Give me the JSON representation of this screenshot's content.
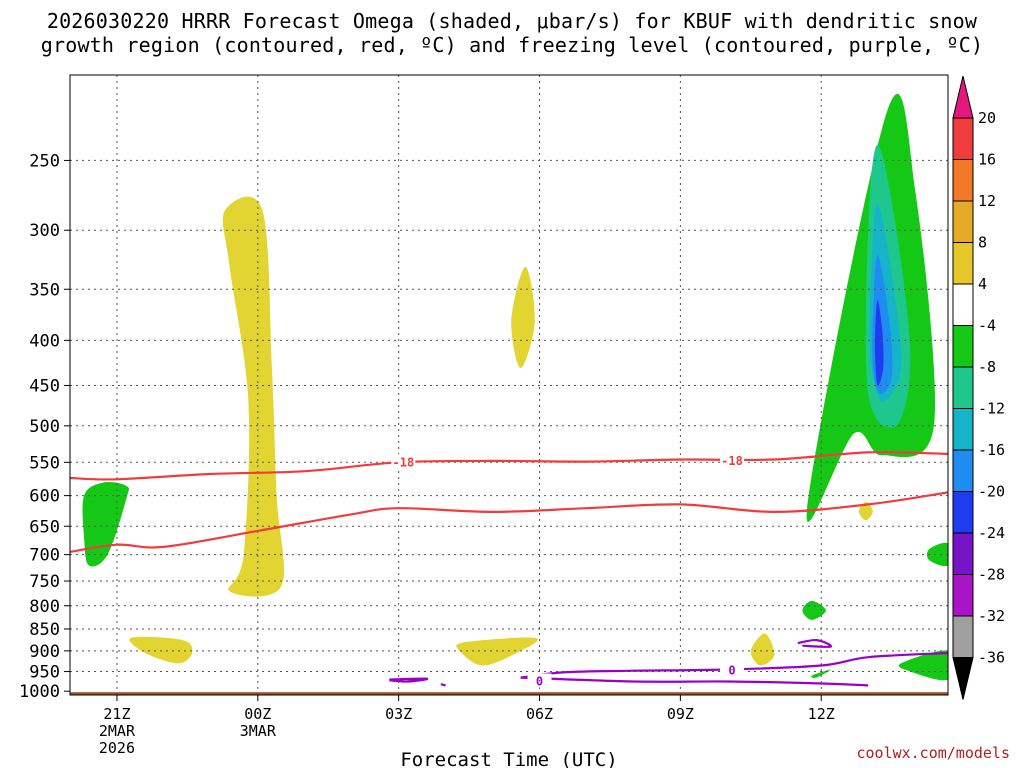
{
  "title_line1": "2026030220 HRRR Forecast Omega (shaded, μbar/s) for KBUF with dendritic snow",
  "title_line2": "growth region (contoured, red, ºC) and freezing level (contoured, purple, ºC)",
  "footer": "coolwx.com/models",
  "colors": {
    "yellow": "#e2d532",
    "green": "#15c815",
    "teal_green": "#1ec88c",
    "cyan_teal": "#16b4c8",
    "light_blue": "#1e8cf0",
    "blue": "#1e3cf0",
    "red_contour": "#f03c3c",
    "purple_contour": "#9b00c8",
    "ground": "#a0522d"
  },
  "chart_data": {
    "type": "heatmap",
    "title": "2026030220 HRRR Forecast Omega (shaded, μbar/s) for KBUF with dendritic snow growth region (contoured, red, ºC) and freezing level (contoured, purple, ºC)",
    "xlabel": "Forecast Time (UTC)",
    "ylabel": "",
    "x_ticks": [
      {
        "hour": 0,
        "label": "21Z",
        "sub1": "2MAR",
        "sub2": "2026"
      },
      {
        "hour": 3,
        "label": "00Z",
        "sub1": "3MAR",
        "sub2": ""
      },
      {
        "hour": 6,
        "label": "03Z",
        "sub1": "",
        "sub2": ""
      },
      {
        "hour": 9,
        "label": "06Z",
        "sub1": "",
        "sub2": ""
      },
      {
        "hour": 12,
        "label": "09Z",
        "sub1": "",
        "sub2": ""
      },
      {
        "hour": 15,
        "label": "12Z",
        "sub1": "",
        "sub2": ""
      }
    ],
    "xlim": [
      -1,
      17.7
    ],
    "y_ticks": [
      250,
      300,
      350,
      400,
      450,
      500,
      550,
      600,
      650,
      700,
      750,
      800,
      850,
      900,
      950,
      1000
    ],
    "ylim_hpa": [
      200,
      1010
    ],
    "y_scale": "log-pressure",
    "grid": true,
    "colorbar": {
      "label_values": [
        "20",
        "16",
        "12",
        "8",
        "4",
        "-4",
        "-8",
        "-12",
        "-16",
        "-20",
        "-24",
        "-28",
        "-32",
        "-36"
      ],
      "bands": [
        {
          "from": 20,
          "to": 24,
          "color": "#e6177c"
        },
        {
          "from": 16,
          "to": 20,
          "color": "#f03c3c"
        },
        {
          "from": 12,
          "to": 16,
          "color": "#f07828"
        },
        {
          "from": 8,
          "to": 12,
          "color": "#e6aa28"
        },
        {
          "from": 4,
          "to": 8,
          "color": "#e6c82d"
        },
        {
          "from": -4,
          "to": 4,
          "color": "#ffffff"
        },
        {
          "from": -8,
          "to": -4,
          "color": "#15c815"
        },
        {
          "from": -12,
          "to": -8,
          "color": "#1ec88c"
        },
        {
          "from": -16,
          "to": -12,
          "color": "#16b4c8"
        },
        {
          "from": -20,
          "to": -16,
          "color": "#1e8cf0"
        },
        {
          "from": -24,
          "to": -20,
          "color": "#1e3cf0"
        },
        {
          "from": -28,
          "to": -24,
          "color": "#7814c8"
        },
        {
          "from": -32,
          "to": -28,
          "color": "#aa14c8"
        },
        {
          "from": -36,
          "to": -32,
          "color": "#a0a0a0"
        }
      ]
    },
    "shaded_regions": [
      {
        "color": "yellow",
        "value": "4 to 8",
        "points": [
          [
            2.3,
            285
          ],
          [
            3.1,
            285
          ],
          [
            3.3,
            430
          ],
          [
            3.4,
            600
          ],
          [
            3.5,
            760
          ],
          [
            2.4,
            770
          ],
          [
            2.7,
            700
          ],
          [
            2.8,
            470
          ],
          [
            2.4,
            330
          ]
        ]
      },
      {
        "color": "yellow",
        "value": "4 to 8",
        "points": [
          [
            8.7,
            330
          ],
          [
            8.9,
            380
          ],
          [
            8.6,
            430
          ],
          [
            8.4,
            380
          ]
        ]
      },
      {
        "color": "yellow",
        "value": "4 to 8",
        "points": [
          [
            0.3,
            870
          ],
          [
            1.4,
            875
          ],
          [
            1.6,
            905
          ],
          [
            1.3,
            930
          ],
          [
            0.6,
            905
          ]
        ]
      },
      {
        "color": "yellow",
        "value": "4 to 8",
        "points": [
          [
            7.4,
            880
          ],
          [
            8.9,
            870
          ],
          [
            8.6,
            900
          ],
          [
            7.8,
            935
          ],
          [
            7.3,
            900
          ]
        ]
      },
      {
        "color": "yellow",
        "value": "4 to 8",
        "points": [
          [
            13.8,
            860
          ],
          [
            14.0,
            910
          ],
          [
            13.7,
            935
          ],
          [
            13.5,
            900
          ]
        ]
      },
      {
        "color": "yellow",
        "value": "4 to 8",
        "points": [
          [
            15.95,
            610
          ],
          [
            16.1,
            625
          ],
          [
            15.95,
            640
          ],
          [
            15.8,
            625
          ]
        ]
      },
      {
        "color": "green",
        "value": "-4 to -8",
        "points": [
          [
            14.7,
            620
          ],
          [
            16.4,
            220
          ],
          [
            17.0,
            270
          ],
          [
            17.4,
            500
          ],
          [
            16.3,
            540
          ],
          [
            15.7,
            510
          ]
        ]
      },
      {
        "color": "green",
        "value": "-4 to -8",
        "points": [
          [
            -0.7,
            600
          ],
          [
            -0.3,
            580
          ],
          [
            0.2,
            585
          ],
          [
            0.2,
            605
          ],
          [
            -0.2,
            700
          ],
          [
            -0.6,
            720
          ],
          [
            -0.7,
            670
          ]
        ]
      },
      {
        "color": "green",
        "value": "-4 to -8",
        "points": [
          [
            14.8,
            790
          ],
          [
            15.1,
            810
          ],
          [
            14.8,
            830
          ],
          [
            14.6,
            810
          ]
        ]
      },
      {
        "color": "green",
        "value": "-4 to -8",
        "points": [
          [
            14.8,
            960
          ],
          [
            15.2,
            945
          ],
          [
            14.9,
            965
          ]
        ]
      },
      {
        "color": "green",
        "value": "-4 to -8",
        "points": [
          [
            17.3,
            690
          ],
          [
            17.7,
            680
          ],
          [
            17.7,
            720
          ],
          [
            17.3,
            710
          ]
        ]
      },
      {
        "color": "green",
        "value": "-4 to -8",
        "points": [
          [
            16.7,
            930
          ],
          [
            17.7,
            900
          ],
          [
            17.7,
            970
          ],
          [
            16.9,
            950
          ]
        ]
      },
      {
        "color": "teal_green",
        "value": "-8 to -12",
        "points": [
          [
            16.0,
            300
          ],
          [
            16.2,
            240
          ],
          [
            16.6,
            300
          ],
          [
            16.9,
            420
          ],
          [
            16.6,
            500
          ],
          [
            16.0,
            460
          ]
        ]
      },
      {
        "color": "cyan_teal",
        "value": "-12 to -16",
        "points": [
          [
            16.05,
            350
          ],
          [
            16.2,
            280
          ],
          [
            16.55,
            350
          ],
          [
            16.7,
            430
          ],
          [
            16.3,
            470
          ],
          [
            16.05,
            420
          ]
        ]
      },
      {
        "color": "light_blue",
        "value": "-16 to -20",
        "points": [
          [
            16.1,
            380
          ],
          [
            16.2,
            320
          ],
          [
            16.45,
            380
          ],
          [
            16.5,
            440
          ],
          [
            16.25,
            460
          ],
          [
            16.1,
            430
          ]
        ]
      },
      {
        "color": "blue",
        "value": "-20 to -24",
        "points": [
          [
            16.15,
            390
          ],
          [
            16.2,
            360
          ],
          [
            16.3,
            390
          ],
          [
            16.32,
            430
          ],
          [
            16.2,
            450
          ],
          [
            16.15,
            420
          ]
        ]
      }
    ],
    "red_contours": [
      {
        "label": "-18",
        "points": [
          [
            -1,
            573
          ],
          [
            0,
            575
          ],
          [
            2,
            567
          ],
          [
            4,
            563
          ],
          [
            6,
            550
          ],
          [
            8,
            548
          ],
          [
            10,
            549
          ],
          [
            12,
            546
          ],
          [
            14,
            546
          ],
          [
            16,
            536
          ],
          [
            17.7,
            538
          ]
        ]
      },
      {
        "label": "",
        "points": [
          [
            -1,
            695
          ],
          [
            0,
            682
          ],
          [
            1,
            686
          ],
          [
            3,
            658
          ],
          [
            5,
            630
          ],
          [
            6,
            620
          ],
          [
            8,
            626
          ],
          [
            10,
            620
          ],
          [
            12,
            614
          ],
          [
            14,
            626
          ],
          [
            16,
            614
          ],
          [
            17.7,
            595
          ]
        ]
      }
    ],
    "purple_contours": [
      {
        "label": "0",
        "points": [
          [
            8.6,
            965
          ],
          [
            9.5,
            952
          ],
          [
            11,
            948
          ],
          [
            13,
            945
          ],
          [
            15,
            935
          ],
          [
            16,
            915
          ],
          [
            17.7,
            905
          ]
        ]
      },
      {
        "label": "0",
        "points": [
          [
            8.6,
            965
          ],
          [
            11,
            975
          ],
          [
            13,
            975
          ],
          [
            15,
            980
          ],
          [
            16,
            985
          ]
        ]
      },
      {
        "label": "",
        "points": [
          [
            5.8,
            970
          ],
          [
            6.6,
            968
          ],
          [
            6.2,
            975
          ],
          [
            5.8,
            972
          ]
        ]
      },
      {
        "label": "",
        "points": [
          [
            14.5,
            882
          ],
          [
            14.9,
            875
          ],
          [
            15.2,
            890
          ],
          [
            14.6,
            888
          ]
        ]
      },
      {
        "label": "",
        "points": [
          [
            6.9,
            982
          ],
          [
            7.0,
            985
          ]
        ]
      }
    ],
    "ground_pressure": 1000
  }
}
